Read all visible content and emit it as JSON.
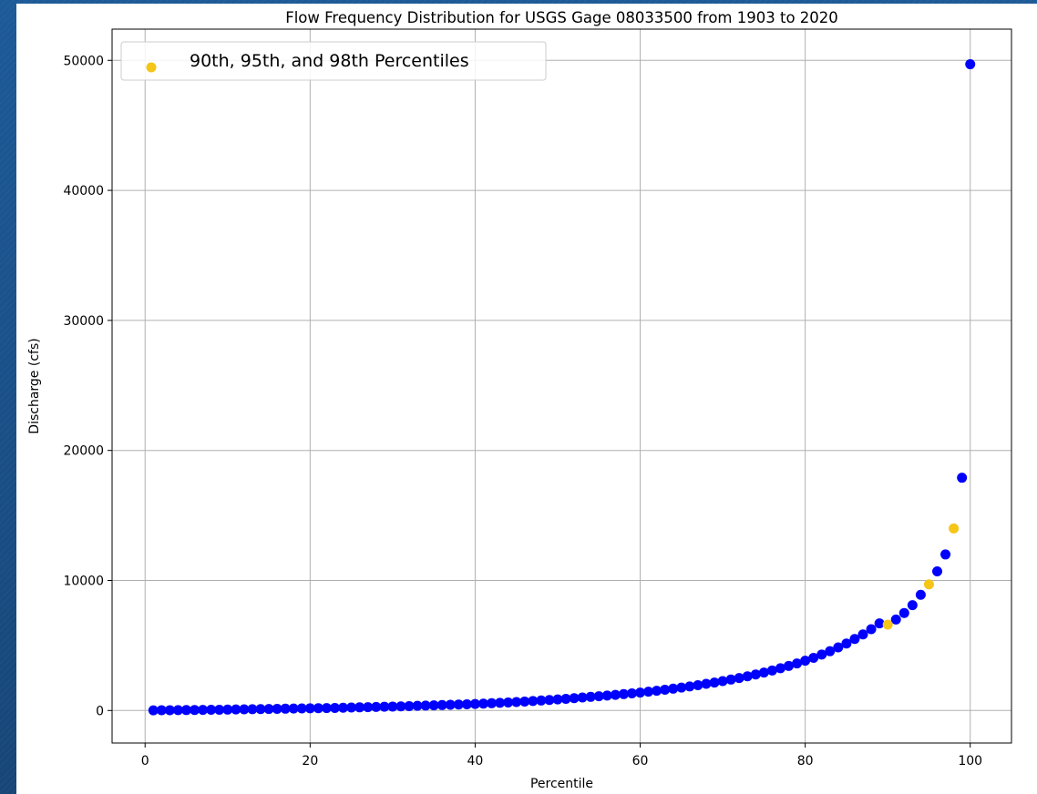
{
  "colors": {
    "background": "#1b4f8a",
    "series": "#0000ff",
    "highlight": "#f5c518",
    "grid": "#b0b0b0"
  },
  "chart_data": {
    "type": "scatter",
    "title": "Flow Frequency Distribution for USGS Gage 08033500 from 1903 to 2020",
    "xlabel": "Percentile",
    "ylabel": "Discharge (cfs)",
    "xlim": [
      -4,
      105
    ],
    "ylim": [
      -2500,
      52400
    ],
    "xticks": [
      0,
      20,
      40,
      60,
      80,
      100
    ],
    "yticks": [
      0,
      10000,
      20000,
      30000,
      40000,
      50000
    ],
    "grid": true,
    "legend": {
      "placement": "top-left",
      "entries": [
        "90th, 95th, and 98th Percentiles"
      ]
    },
    "series": [
      {
        "name": "",
        "color": "#0000ff",
        "x": [
          1,
          2,
          3,
          4,
          5,
          6,
          7,
          8,
          9,
          10,
          11,
          12,
          13,
          14,
          15,
          16,
          17,
          18,
          19,
          20,
          21,
          22,
          23,
          24,
          25,
          26,
          27,
          28,
          29,
          30,
          31,
          32,
          33,
          34,
          35,
          36,
          37,
          38,
          39,
          40,
          41,
          42,
          43,
          44,
          45,
          46,
          47,
          48,
          49,
          50,
          51,
          52,
          53,
          54,
          55,
          56,
          57,
          58,
          59,
          60,
          61,
          62,
          63,
          64,
          65,
          66,
          67,
          68,
          69,
          70,
          71,
          72,
          73,
          74,
          75,
          76,
          77,
          78,
          79,
          80,
          81,
          82,
          83,
          84,
          85,
          86,
          87,
          88,
          89,
          91,
          92,
          93,
          94,
          96,
          97,
          99,
          100
        ],
        "y": [
          10,
          20,
          25,
          30,
          35,
          40,
          45,
          55,
          60,
          70,
          80,
          90,
          100,
          110,
          120,
          130,
          140,
          150,
          160,
          170,
          180,
          190,
          200,
          215,
          230,
          245,
          260,
          275,
          290,
          305,
          320,
          340,
          360,
          380,
          400,
          420,
          440,
          460,
          480,
          500,
          530,
          560,
          590,
          620,
          650,
          690,
          730,
          770,
          810,
          850,
          900,
          950,
          1000,
          1050,
          1100,
          1150,
          1200,
          1260,
          1320,
          1380,
          1450,
          1520,
          1600,
          1680,
          1760,
          1850,
          1950,
          2050,
          2150,
          2260,
          2380,
          2500,
          2630,
          2770,
          2920,
          3080,
          3250,
          3430,
          3620,
          3830,
          4050,
          4300,
          4560,
          4850,
          5150,
          5500,
          5850,
          6250,
          6700,
          7000,
          7500,
          8100,
          8900,
          10700,
          12000,
          17900,
          49700
        ]
      },
      {
        "name": "90th, 95th, and 98th Percentiles",
        "color": "#f5c518",
        "x": [
          90,
          95,
          98
        ],
        "y": [
          6600,
          9700,
          14000
        ]
      }
    ]
  }
}
